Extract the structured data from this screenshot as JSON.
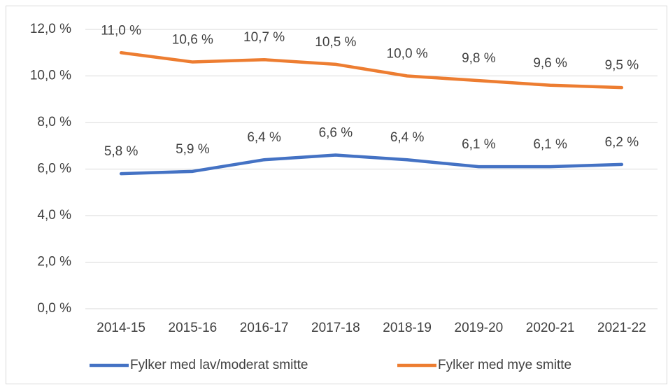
{
  "chart_data": {
    "type": "line",
    "categories": [
      "2014-15",
      "2015-16",
      "2016-17",
      "2017-18",
      "2018-19",
      "2019-20",
      "2020-21",
      "2021-22"
    ],
    "series": [
      {
        "name": "Fylker med lav/moderat smitte",
        "color": "#4472c4",
        "values": [
          5.8,
          5.9,
          6.4,
          6.6,
          6.4,
          6.1,
          6.1,
          6.2
        ],
        "value_labels": [
          "5,8 %",
          "5,9 %",
          "6,4 %",
          "6,6 %",
          "6,4 %",
          "6,1 %",
          "6,1 %",
          "6,2 %"
        ]
      },
      {
        "name": "Fylker med mye smitte",
        "color": "#ed7d31",
        "values": [
          11.0,
          10.6,
          10.7,
          10.5,
          10.0,
          9.8,
          9.6,
          9.5
        ],
        "value_labels": [
          "11,0 %",
          "10,6 %",
          "10,7 %",
          "10,5 %",
          "10,0 %",
          "9,8 %",
          "9,6 %",
          "9,5 %"
        ]
      }
    ],
    "ylim": [
      0,
      12
    ],
    "yticks": [
      {
        "value": 0,
        "label": "0,0 %"
      },
      {
        "value": 2,
        "label": "2,0 %"
      },
      {
        "value": 4,
        "label": "4,0 %"
      },
      {
        "value": 6,
        "label": "6,0 %"
      },
      {
        "value": 8,
        "label": "8,0 %"
      },
      {
        "value": 10,
        "label": "10,0 %"
      },
      {
        "value": 12,
        "label": "12,0 %"
      }
    ],
    "grid": true,
    "legend": "bottom"
  }
}
